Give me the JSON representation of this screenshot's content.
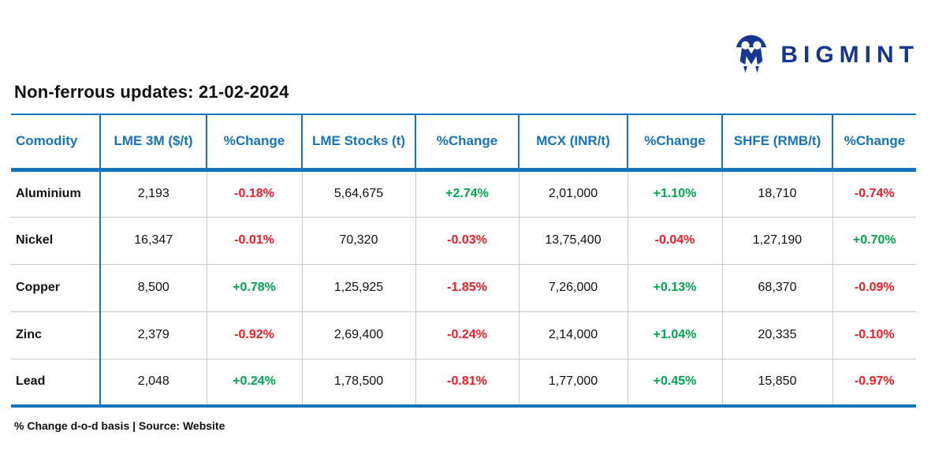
{
  "brand": {
    "name": "BIGMINT"
  },
  "page": {
    "title": "Non-ferrous updates: 21-02-2024",
    "footnote": "% Change d-o-d basis | Source: Website"
  },
  "colors": {
    "accent_blue": "#1674bc",
    "positive_green": "#00a650",
    "negative_red": "#ee1c25",
    "brand_navy": "#16368f",
    "grid_gray": "#c9c9c9"
  },
  "chart_data": {
    "type": "table",
    "title": "Non-ferrous updates: 21-02-2024",
    "columns": [
      "Comodity",
      "LME 3M ($/t)",
      "%Change",
      "LME Stocks (t)",
      "%Change",
      "MCX (INR/t)",
      "%Change",
      "SHFE (RMB/t)",
      "%Change"
    ],
    "rows": [
      [
        "Aluminium",
        "2,193",
        "-0.18%",
        "5,64,675",
        "+2.74%",
        "2,01,000",
        "+1.10%",
        "18,710",
        "-0.74%"
      ],
      [
        "Nickel",
        "16,347",
        "-0.01%",
        "70,320",
        "-0.03%",
        "13,75,400",
        "-0.04%",
        "1,27,190",
        "+0.70%"
      ],
      [
        "Copper",
        "8,500",
        "+0.78%",
        "1,25,925",
        "-1.85%",
        "7,26,000",
        "+0.13%",
        "68,370",
        "-0.09%"
      ],
      [
        "Zinc",
        "2,379",
        "-0.92%",
        "2,69,400",
        "-0.24%",
        "2,14,000",
        "+1.04%",
        "20,335",
        "-0.10%"
      ],
      [
        "Lead",
        "2,048",
        "+0.24%",
        "1,78,500",
        "-0.81%",
        "1,77,000",
        "+0.45%",
        "15,850",
        "-0.97%"
      ]
    ],
    "footnote": "% Change d-o-d basis | Source: Website",
    "legend": "none",
    "grid": "on"
  }
}
